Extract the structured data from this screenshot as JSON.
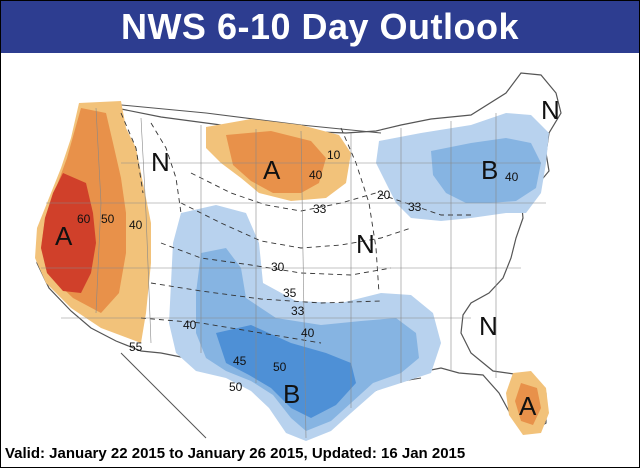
{
  "header": {
    "title": "NWS 6-10 Day Outlook"
  },
  "footer": {
    "valid_text": "Valid: January 22 2015 to January 26 2015, Updated: 16 Jan 2015"
  },
  "colors": {
    "banner": "#2d3d90",
    "above_light": "#f2c27a",
    "above_mid": "#e8914a",
    "above_dark": "#d0402a",
    "below_light": "#b8d2ee",
    "below_mid": "#86b4e2",
    "below_dark": "#4e90d6"
  },
  "map": {
    "category_labels": [
      {
        "id": "west-above",
        "text": "A"
      },
      {
        "id": "northern-plains-above",
        "text": "A"
      },
      {
        "id": "great-lakes-below",
        "text": "B"
      },
      {
        "id": "texas-below",
        "text": "B"
      },
      {
        "id": "florida-above",
        "text": "A"
      },
      {
        "id": "northwest-normal",
        "text": "N"
      },
      {
        "id": "midwest-normal",
        "text": "N"
      },
      {
        "id": "southeast-normal",
        "text": "N"
      },
      {
        "id": "maine-normal",
        "text": "N"
      }
    ],
    "contour_labels": [
      {
        "id": "c-60",
        "text": "60"
      },
      {
        "id": "c-50-west",
        "text": "50"
      },
      {
        "id": "c-40-west",
        "text": "40"
      },
      {
        "id": "c-55",
        "text": "55"
      },
      {
        "id": "c-40-plains",
        "text": "40"
      },
      {
        "id": "c-10-plains",
        "text": "10"
      },
      {
        "id": "c-33-plains",
        "text": "33"
      },
      {
        "id": "c-40-ne",
        "text": "40"
      },
      {
        "id": "c-33-lakes",
        "text": "33"
      },
      {
        "id": "c-20-lakes",
        "text": "20"
      },
      {
        "id": "c-30-mid",
        "text": "30"
      },
      {
        "id": "c-35-mid",
        "text": "35"
      },
      {
        "id": "c-33-mid",
        "text": "33"
      },
      {
        "id": "c-40-south",
        "text": "40"
      },
      {
        "id": "c-40-sw",
        "text": "40"
      },
      {
        "id": "c-45",
        "text": "45"
      },
      {
        "id": "c-50-tx",
        "text": "50"
      },
      {
        "id": "c-50-sw",
        "text": "50"
      }
    ]
  }
}
